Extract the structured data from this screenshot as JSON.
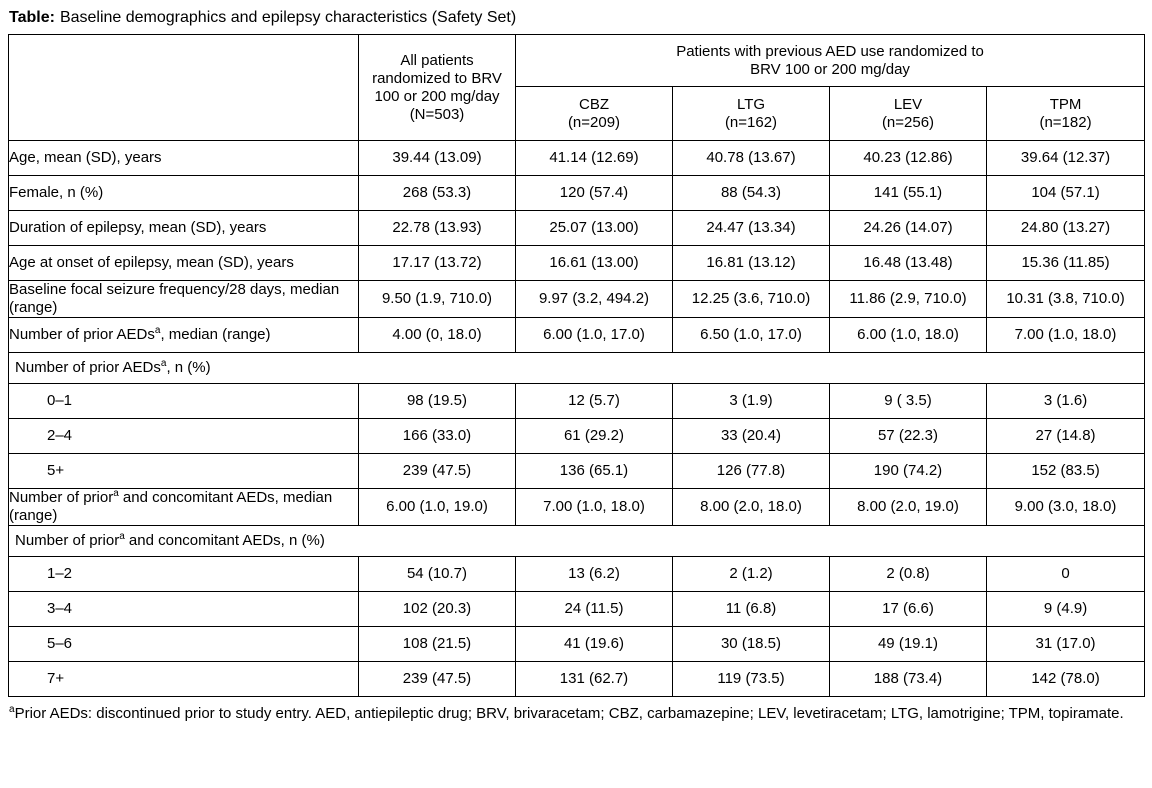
{
  "title": {
    "label": "Table:",
    "text": "Baseline demographics and epilepsy characteristics (Safety Set)"
  },
  "table": {
    "header": {
      "all_patients_lines": [
        "All patients",
        "randomized to BRV",
        "100 or 200 mg/day",
        "(N=503)"
      ],
      "group_header_line1": "Patients with previous AED use randomized to",
      "group_header_line2": "BRV 100 or 200 mg/day",
      "subcolumns": [
        {
          "drug": "CBZ",
          "n": "(n=209)"
        },
        {
          "drug": "LTG",
          "n": "(n=162)"
        },
        {
          "drug": "LEV",
          "n": "(n=256)"
        },
        {
          "drug": "TPM",
          "n": "(n=182)"
        }
      ]
    },
    "rows": [
      {
        "type": "data",
        "pre": "Age, mean (SD), years",
        "values": [
          "39.44 (13.09)",
          "41.14 (12.69)",
          "40.78 (13.67)",
          "40.23 (12.86)",
          "39.64 (12.37)"
        ]
      },
      {
        "type": "data",
        "pre": "Female, n (%)",
        "values": [
          "268 (53.3)",
          "120 (57.4)",
          "88 (54.3)",
          "141 (55.1)",
          "104 (57.1)"
        ]
      },
      {
        "type": "data",
        "pre": "Duration of epilepsy, mean (SD), years",
        "values": [
          "22.78 (13.93)",
          "25.07 (13.00)",
          "24.47 (13.34)",
          "24.26 (14.07)",
          "24.80 (13.27)"
        ]
      },
      {
        "type": "data",
        "pre": "Age at onset of epilepsy, mean (SD), years",
        "values": [
          "17.17 (13.72)",
          "16.61 (13.00)",
          "16.81 (13.12)",
          "16.48 (13.48)",
          "15.36 (11.85)"
        ]
      },
      {
        "type": "data",
        "pre": "Baseline focal seizure frequency/28 days, median (range)",
        "values": [
          "9.50 (1.9, 710.0)",
          "9.97 (3.2, 494.2)",
          "12.25 (3.6, 710.0)",
          "11.86 (2.9, 710.0)",
          "10.31 (3.8, 710.0)"
        ]
      },
      {
        "type": "data",
        "pre": "Number of prior AEDs",
        "sup": "a",
        "post": ", median (range)",
        "values": [
          "4.00 (0, 18.0)",
          "6.00 (1.0, 17.0)",
          "6.50 (1.0, 17.0)",
          "6.00 (1.0, 18.0)",
          "7.00 (1.0, 18.0)"
        ]
      },
      {
        "type": "section",
        "pre": "Number of prior AEDs",
        "sup": "a",
        "post": ", n (%)"
      },
      {
        "type": "sub",
        "pre": "0–1",
        "values": [
          "98 (19.5)",
          "12 (5.7)",
          "3 (1.9)",
          "9 ( 3.5)",
          "3 (1.6)"
        ]
      },
      {
        "type": "sub",
        "pre": "2–4",
        "values": [
          "166 (33.0)",
          "61 (29.2)",
          "33 (20.4)",
          "57 (22.3)",
          "27 (14.8)"
        ]
      },
      {
        "type": "sub",
        "pre": "5+",
        "values": [
          "239 (47.5)",
          "136 (65.1)",
          "126 (77.8)",
          "190 (74.2)",
          "152 (83.5)"
        ]
      },
      {
        "type": "data",
        "pre": "Number of prior",
        "sup": "a",
        "post": " and concomitant AEDs, median (range)",
        "values": [
          "6.00 (1.0, 19.0)",
          "7.00 (1.0, 18.0)",
          "8.00 (2.0, 18.0)",
          "8.00 (2.0, 19.0)",
          "9.00 (3.0, 18.0)"
        ]
      },
      {
        "type": "section",
        "pre": "Number of prior",
        "sup": "a",
        "post": " and concomitant AEDs, n (%)"
      },
      {
        "type": "sub",
        "pre": "1–2",
        "values": [
          "54 (10.7)",
          "13 (6.2)",
          "2 (1.2)",
          "2 (0.8)",
          "0"
        ]
      },
      {
        "type": "sub",
        "pre": "3–4",
        "values": [
          "102 (20.3)",
          "24 (11.5)",
          "11 (6.8)",
          "17 (6.6)",
          "9 (4.9)"
        ]
      },
      {
        "type": "sub",
        "pre": "5–6",
        "values": [
          "108 (21.5)",
          "41 (19.6)",
          "30 (18.5)",
          "49 (19.1)",
          "31 (17.0)"
        ]
      },
      {
        "type": "sub",
        "pre": "7+",
        "values": [
          "239 (47.5)",
          "131 (62.7)",
          "119 (73.5)",
          "188 (73.4)",
          "142 (78.0)"
        ]
      }
    ]
  },
  "footnote": {
    "sup": "a",
    "text": "Prior AEDs: discontinued prior to study entry. AED, antiepileptic drug; BRV, brivaracetam; CBZ, carbamazepine; LEV, levetiracetam; LTG, lamotrigine; TPM, topiramate."
  }
}
